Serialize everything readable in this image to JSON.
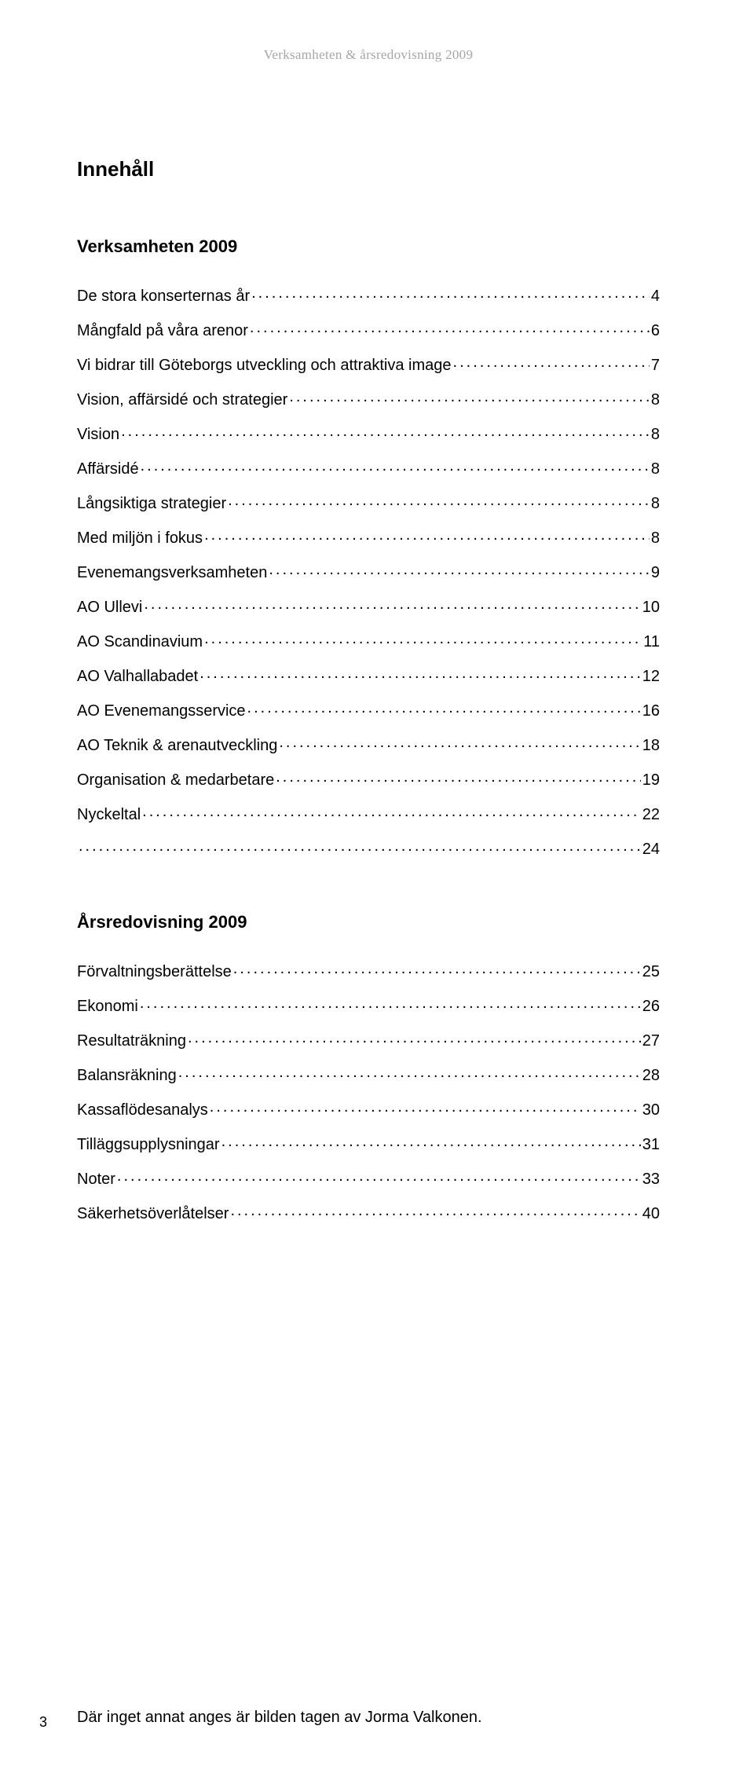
{
  "runningHead": "Verksamheten & årsredovisning 2009",
  "mainHeading": "Innehåll",
  "sections": [
    {
      "title": "Verksamheten 2009",
      "entries": [
        {
          "label": "De stora konserternas år",
          "page": "4"
        },
        {
          "label": "Mångfald på våra arenor",
          "page": "6"
        },
        {
          "label": "Vi bidrar till Göteborgs utveckling och attraktiva image",
          "page": "7"
        },
        {
          "label": "Vision, affärsidé och strategier",
          "page": "8"
        },
        {
          "label": "Vision",
          "page": "8"
        },
        {
          "label": "Affärsidé",
          "page": "8"
        },
        {
          "label": "Långsiktiga strategier",
          "page": "8"
        },
        {
          "label": "Med miljön i fokus",
          "page": "8"
        },
        {
          "label": "Evenemangsverksamheten",
          "page": "9"
        },
        {
          "label": "AO Ullevi",
          "page": "10"
        },
        {
          "label": "AO Scandinavium",
          "page": "11"
        },
        {
          "label": "AO Valhallabadet",
          "page": "12"
        },
        {
          "label": "AO Evenemangsservice",
          "page": "16"
        },
        {
          "label": "AO Teknik & arenautveckling",
          "page": "18"
        },
        {
          "label": "Organisation & medarbetare",
          "page": "19"
        },
        {
          "label": "Nyckeltal",
          "page": "22"
        },
        {
          "label": "",
          "page": "24"
        }
      ]
    },
    {
      "title": "Årsredovisning 2009",
      "entries": [
        {
          "label": "Förvaltningsberättelse",
          "page": "25"
        },
        {
          "label": "Ekonomi",
          "page": "26"
        },
        {
          "label": "Resultaträkning",
          "page": "27"
        },
        {
          "label": "Balansräkning",
          "page": "28"
        },
        {
          "label": "Kassaflödesanalys",
          "page": "30"
        },
        {
          "label": "Tilläggsupplysningar",
          "page": "31"
        },
        {
          "label": "Noter",
          "page": "33"
        },
        {
          "label": "Säkerhetsöverlåtelser",
          "page": "40"
        }
      ]
    }
  ],
  "footnote": "Där inget annat anges är bilden tagen av Jorma Valkonen.",
  "pageNumber": "3",
  "colors": {
    "background": "#ffffff",
    "text": "#000000",
    "runningHead": "#a6a6a6"
  },
  "typography": {
    "bodyFont": "Arial, Helvetica, sans-serif",
    "runningHeadFont": "Georgia, 'Times New Roman', serif",
    "mainHeadingSize": 26,
    "sectionHeadingSize": 22,
    "tocSize": 20
  }
}
